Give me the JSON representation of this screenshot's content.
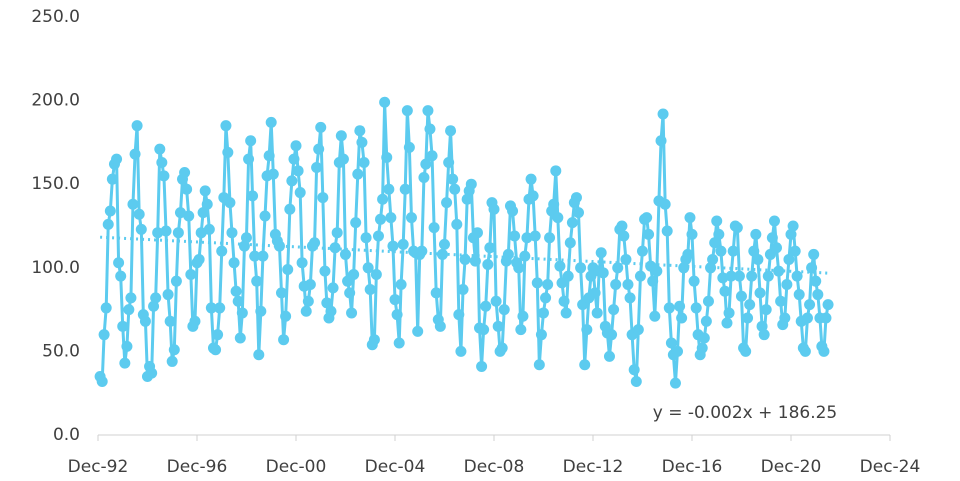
{
  "chart_data": {
    "type": "line",
    "color": "#5ccbef",
    "xlim": [
      33939,
      45627
    ],
    "xticks": [
      {
        "value": 33939,
        "label": "Dec-92"
      },
      {
        "value": 35400,
        "label": "Dec-96"
      },
      {
        "value": 36861,
        "label": "Dec-00"
      },
      {
        "value": 38322,
        "label": "Dec-04"
      },
      {
        "value": 39783,
        "label": "Dec-08"
      },
      {
        "value": 41244,
        "label": "Dec-12"
      },
      {
        "value": 42705,
        "label": "Dec-16"
      },
      {
        "value": 44166,
        "label": "Dec-20"
      },
      {
        "value": 45627,
        "label": "Dec-24"
      }
    ],
    "ylim": [
      0,
      250
    ],
    "yticks": [
      {
        "value": 0,
        "label": "0.0"
      },
      {
        "value": 50,
        "label": "50.0"
      },
      {
        "value": 100,
        "label": "100.0"
      },
      {
        "value": 150,
        "label": "150.0"
      },
      {
        "value": 200,
        "label": "200.0"
      },
      {
        "value": 250,
        "label": "250.0"
      }
    ],
    "trendline": {
      "slope": -0.002,
      "intercept": 186.25,
      "label": "y = -0.002x + 186.25"
    },
    "x": [
      "1993-01",
      "1993-02",
      "1993-03",
      "1993-04",
      "1993-05",
      "1993-06",
      "1993-07",
      "1993-08",
      "1993-09",
      "1993-10",
      "1993-11",
      "1993-12",
      "1994-01",
      "1994-02",
      "1994-03",
      "1994-04",
      "1994-05",
      "1994-06",
      "1994-07",
      "1994-08",
      "1994-09",
      "1994-10",
      "1994-11",
      "1994-12",
      "1995-01",
      "1995-02",
      "1995-03",
      "1995-04",
      "1995-05",
      "1995-06",
      "1995-07",
      "1995-08",
      "1995-09",
      "1995-10",
      "1995-11",
      "1995-12",
      "1996-01",
      "1996-02",
      "1996-03",
      "1996-04",
      "1996-05",
      "1996-06",
      "1996-07",
      "1996-08",
      "1996-09",
      "1996-10",
      "1996-11",
      "1996-12",
      "1997-01",
      "1997-02",
      "1997-03",
      "1997-04",
      "1997-05",
      "1997-06",
      "1997-07",
      "1997-08",
      "1997-09",
      "1997-10",
      "1997-11",
      "1997-12",
      "1998-01",
      "1998-02",
      "1998-03",
      "1998-04",
      "1998-05",
      "1998-06",
      "1998-07",
      "1998-08",
      "1998-09",
      "1998-10",
      "1998-11",
      "1998-12",
      "1999-01",
      "1999-02",
      "1999-03",
      "1999-04",
      "1999-05",
      "1999-06",
      "1999-07",
      "1999-08",
      "1999-09",
      "1999-10",
      "1999-11",
      "1999-12",
      "2000-01",
      "2000-02",
      "2000-03",
      "2000-04",
      "2000-05",
      "2000-06",
      "2000-07",
      "2000-08",
      "2000-09",
      "2000-10",
      "2000-11",
      "2000-12",
      "2001-01",
      "2001-02",
      "2001-03",
      "2001-04",
      "2001-05",
      "2001-06",
      "2001-07",
      "2001-08",
      "2001-09",
      "2001-10",
      "2001-11",
      "2001-12",
      "2002-01",
      "2002-02",
      "2002-03",
      "2002-04",
      "2002-05",
      "2002-06",
      "2002-07",
      "2002-08",
      "2002-09",
      "2002-10",
      "2002-11",
      "2002-12",
      "2003-01",
      "2003-02",
      "2003-03",
      "2003-04",
      "2003-05",
      "2003-06",
      "2003-07",
      "2003-08",
      "2003-09",
      "2003-10",
      "2003-11",
      "2003-12",
      "2004-01",
      "2004-02",
      "2004-03",
      "2004-04",
      "2004-05",
      "2004-06",
      "2004-07",
      "2004-08",
      "2004-09",
      "2004-10",
      "2004-11",
      "2004-12",
      "2005-01",
      "2005-02",
      "2005-03",
      "2005-04",
      "2005-05",
      "2005-06",
      "2005-07",
      "2005-08",
      "2005-09",
      "2005-10",
      "2005-11",
      "2005-12",
      "2006-01",
      "2006-02",
      "2006-03",
      "2006-04",
      "2006-05",
      "2006-06",
      "2006-07",
      "2006-08",
      "2006-09",
      "2006-10",
      "2006-11",
      "2006-12",
      "2007-01",
      "2007-02",
      "2007-03",
      "2007-04",
      "2007-05",
      "2007-06",
      "2007-07",
      "2007-08",
      "2007-09",
      "2007-10",
      "2007-11",
      "2007-12",
      "2008-01",
      "2008-02",
      "2008-03",
      "2008-04",
      "2008-05",
      "2008-06",
      "2008-07",
      "2008-08",
      "2008-09",
      "2008-10",
      "2008-11",
      "2008-12",
      "2009-01",
      "2009-02",
      "2009-03",
      "2009-04",
      "2009-05",
      "2009-06",
      "2009-07",
      "2009-08",
      "2009-09",
      "2009-10",
      "2009-11",
      "2009-12",
      "2010-01",
      "2010-02",
      "2010-03",
      "2010-04",
      "2010-05",
      "2010-06",
      "2010-07",
      "2010-08",
      "2010-09",
      "2010-10",
      "2010-11",
      "2010-12",
      "2011-01",
      "2011-02",
      "2011-03",
      "2011-04",
      "2011-05",
      "2011-06",
      "2011-07",
      "2011-08",
      "2011-09",
      "2011-10",
      "2011-11",
      "2011-12",
      "2012-01",
      "2012-02",
      "2012-03",
      "2012-04",
      "2012-05",
      "2012-06",
      "2012-07",
      "2012-08",
      "2012-09",
      "2012-10",
      "2012-11",
      "2012-12",
      "2013-01",
      "2013-02",
      "2013-03",
      "2013-04",
      "2013-05",
      "2013-06",
      "2013-07",
      "2013-08",
      "2013-09",
      "2013-10",
      "2013-11",
      "2013-12",
      "2014-01",
      "2014-02",
      "2014-03",
      "2014-04",
      "2014-05",
      "2014-06",
      "2014-07",
      "2014-08",
      "2014-09",
      "2014-10",
      "2014-11",
      "2014-12",
      "2015-01",
      "2015-02",
      "2015-03",
      "2015-04",
      "2015-05",
      "2015-06",
      "2015-07",
      "2015-08",
      "2015-09",
      "2015-10",
      "2015-11",
      "2015-12",
      "2016-01",
      "2016-02",
      "2016-03",
      "2016-04",
      "2016-05",
      "2016-06",
      "2016-07",
      "2016-08",
      "2016-09",
      "2016-10",
      "2016-11",
      "2016-12",
      "2017-01",
      "2017-02",
      "2017-03",
      "2017-04",
      "2017-05",
      "2017-06",
      "2017-07",
      "2017-08",
      "2017-09",
      "2017-10",
      "2017-11",
      "2017-12",
      "2018-01",
      "2018-02",
      "2018-03",
      "2018-04",
      "2018-05",
      "2018-06",
      "2018-07",
      "2018-08",
      "2018-09",
      "2018-10",
      "2018-11",
      "2018-12",
      "2019-01",
      "2019-02",
      "2019-03",
      "2019-04",
      "2019-05",
      "2019-06",
      "2019-07",
      "2019-08",
      "2019-09",
      "2019-10",
      "2019-11",
      "2019-12",
      "2020-01",
      "2020-02",
      "2020-03",
      "2020-04",
      "2020-05",
      "2020-06",
      "2020-07",
      "2020-08",
      "2020-09",
      "2020-10",
      "2020-11",
      "2020-12",
      "2021-01",
      "2021-02",
      "2021-03",
      "2021-04",
      "2021-05",
      "2021-06",
      "2021-07",
      "2021-08",
      "2021-09",
      "2021-10",
      "2021-11",
      "2021-12",
      "2022-01",
      "2022-02",
      "2022-03",
      "2022-04",
      "2022-05",
      "2022-06"
    ],
    "values": [
      35,
      32,
      60,
      76,
      126,
      134,
      153,
      162,
      165,
      103,
      95,
      65,
      43,
      53,
      75,
      82,
      138,
      168,
      185,
      132,
      123,
      72,
      68,
      35,
      41,
      37,
      77,
      82,
      121,
      171,
      163,
      155,
      122,
      84,
      68,
      44,
      51,
      92,
      121,
      133,
      153,
      157,
      147,
      131,
      96,
      65,
      68,
      103,
      105,
      121,
      133,
      146,
      138,
      123,
      76,
      52,
      51,
      60,
      76,
      110,
      142,
      185,
      169,
      139,
      121,
      103,
      86,
      80,
      58,
      73,
      113,
      118,
      165,
      176,
      143,
      107,
      92,
      48,
      74,
      107,
      131,
      155,
      167,
      187,
      156,
      120,
      116,
      113,
      85,
      57,
      71,
      99,
      135,
      152,
      165,
      173,
      158,
      145,
      103,
      89,
      74,
      80,
      90,
      113,
      115,
      160,
      171,
      184,
      142,
      98,
      79,
      70,
      74,
      88,
      112,
      121,
      163,
      179,
      165,
      108,
      92,
      85,
      73,
      96,
      127,
      156,
      182,
      175,
      163,
      118,
      100,
      87,
      54,
      57,
      96,
      119,
      129,
      141,
      199,
      166,
      147,
      130,
      113,
      81,
      72,
      55,
      90,
      114,
      147,
      194,
      172,
      130,
      110,
      109,
      62,
      108,
      110,
      154,
      162,
      194,
      183,
      167,
      124,
      85,
      69,
      65,
      108,
      114,
      139,
      163,
      182,
      153,
      147,
      126,
      72,
      50,
      87,
      105,
      141,
      146,
      150,
      118,
      104,
      121,
      64,
      41,
      63,
      77,
      102,
      112,
      139,
      135,
      80,
      65,
      50,
      52,
      75,
      104,
      108,
      137,
      134,
      119,
      103,
      100,
      63,
      71,
      107,
      118,
      141,
      153,
      143,
      119,
      91,
      42,
      60,
      73,
      82,
      90,
      118,
      134,
      138,
      158,
      130,
      101,
      91,
      80,
      73,
      95,
      115,
      127,
      139,
      142,
      133,
      100,
      78,
      42,
      63,
      82,
      95,
      100,
      85,
      73,
      98,
      109,
      97,
      65,
      61,
      47,
      60,
      75,
      90,
      100,
      123,
      125,
      119,
      105,
      90,
      82,
      60,
      39,
      32,
      63,
      95,
      110,
      129,
      130,
      120,
      101,
      92,
      71,
      98,
      140,
      176,
      192,
      138,
      122,
      76,
      55,
      48,
      31,
      50,
      77,
      70,
      100,
      105,
      108,
      130,
      120,
      92,
      76,
      60,
      48,
      52,
      58,
      68,
      80,
      100,
      105,
      115,
      128,
      120,
      110,
      94,
      86,
      67,
      73,
      95,
      110,
      125,
      124,
      95,
      83,
      52,
      50,
      70,
      78,
      95,
      110,
      120,
      105,
      85,
      65,
      60,
      75,
      95,
      108,
      118,
      128,
      112,
      98,
      80,
      66,
      70,
      90,
      105,
      120,
      125,
      110,
      95,
      84,
      68,
      52,
      50,
      70,
      78,
      100,
      108,
      92,
      84,
      70,
      53,
      50,
      70,
      78
    ]
  }
}
